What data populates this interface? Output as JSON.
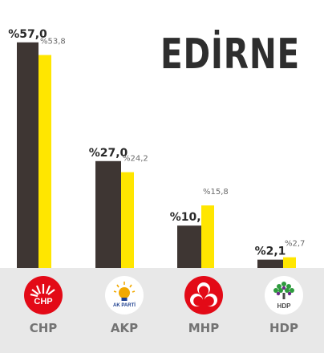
{
  "title": "EDİRNE",
  "colors": {
    "current": "#3e3633",
    "previous": "#ffe600",
    "background": "#ffffff",
    "footer": "#e8e8e8"
  },
  "parties": [
    {
      "name": "CHP",
      "logo_icon": "chp-six-arrows-icon",
      "logo_text": "CHP"
    },
    {
      "name": "AKP",
      "logo_icon": "ak-parti-lightbulb-icon",
      "logo_text": "AK PARTİ"
    },
    {
      "name": "MHP",
      "logo_icon": "mhp-three-crescents-icon"
    },
    {
      "name": "HDP",
      "logo_icon": "hdp-tree-icon",
      "logo_text": "HDP"
    }
  ],
  "chart_data": {
    "type": "bar",
    "categories": [
      "CHP",
      "AKP",
      "MHP",
      "HDP"
    ],
    "series": [
      {
        "values": [
          57.0,
          27.0,
          10.7,
          2.1
        ],
        "labels": [
          "%57,0",
          "%27,0",
          "%10,7",
          "%2,1"
        ],
        "color": "#3e3633"
      },
      {
        "values": [
          53.8,
          24.2,
          15.8,
          2.7
        ],
        "labels": [
          "%53,8",
          "%24,2",
          "%15,8",
          "%2,7"
        ],
        "color": "#ffe600"
      }
    ],
    "ylim": [
      0,
      60
    ],
    "grid": false,
    "legend": "none"
  }
}
